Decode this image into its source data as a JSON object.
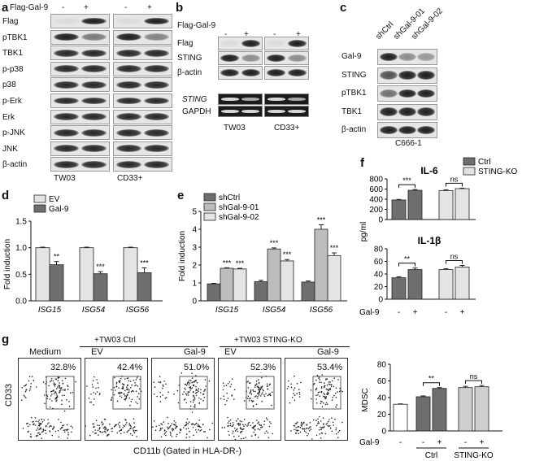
{
  "panel_a": {
    "letter": "a",
    "treatment_label": "Flag-Gal-9",
    "signs": [
      "-",
      "+",
      "-",
      "+"
    ],
    "rows": [
      "Flag",
      "pTBK1",
      "TBK1",
      "p-p38",
      "p38",
      "p-Erk",
      "Erk",
      "p-JNK",
      "JNK",
      "β-actin"
    ],
    "cell_lines": [
      "TW03",
      "CD33+"
    ]
  },
  "panel_b": {
    "letter": "b",
    "treatment_label": "Flag-Gal-9",
    "signs": [
      "-",
      "+",
      "-",
      "+"
    ],
    "rows": [
      "Flag",
      "STING",
      "β-actin"
    ],
    "pcr_rows": [
      "STING",
      "GAPDH"
    ],
    "cell_lines": [
      "TW03",
      "CD33+"
    ]
  },
  "panel_c": {
    "letter": "c",
    "lanes": [
      "shCtrl",
      "shGal-9-01",
      "shGal-9-02"
    ],
    "rows": [
      "Gal-9",
      "STING",
      "pTBK1",
      "TBK1",
      "β-actin"
    ],
    "cell_line": "C666-1"
  },
  "panel_d": {
    "letter": "d",
    "ylabel": "Fold induction",
    "legend": [
      "EV",
      "Gal-9"
    ],
    "yticks": [
      "0.0",
      "0.5",
      "1.0",
      "1.5"
    ],
    "categories": [
      "ISG15",
      "ISG54",
      "ISG56"
    ],
    "stars": [
      "**",
      "***",
      "***"
    ]
  },
  "panel_e": {
    "letter": "e",
    "ylabel": "Fold induction",
    "legend": [
      "shCtrl",
      "shGal-9-01",
      "shGal-9-02"
    ],
    "yticks": [
      "0",
      "1",
      "2",
      "3",
      "4",
      "5"
    ],
    "categories": [
      "ISG15",
      "ISG54",
      "ISG56"
    ],
    "stars": [
      "***",
      "***",
      "***",
      "***",
      "***",
      "***"
    ]
  },
  "panel_f": {
    "letter": "f",
    "ylabel": "pg/ml",
    "legend": [
      "Ctrl",
      "STING-KO"
    ],
    "top_title": "IL-6",
    "top_yticks": [
      "0",
      "200",
      "400",
      "600",
      "800"
    ],
    "bottom_title": "IL-1β",
    "bottom_yticks": [
      "0",
      "20",
      "40",
      "60",
      "80"
    ],
    "top_sig": [
      "***",
      "ns"
    ],
    "bottom_sig": [
      "**",
      "ns"
    ],
    "row_label": "Gal-9",
    "signs": [
      "-",
      "+",
      "-",
      "+"
    ]
  },
  "panel_g": {
    "letter": "g",
    "ylabel": "CD33",
    "xlabel": "CD11b (Gated in HLA-DR-)",
    "group1": "+TW03 Ctrl",
    "group2": "+TW03 STING-KO",
    "plots": [
      {
        "title": "Medium",
        "pct": "32.8%"
      },
      {
        "title": "EV",
        "pct": "42.4%"
      },
      {
        "title": "Gal-9",
        "pct": "51.0%"
      },
      {
        "title": "EV",
        "pct": "52.3%"
      },
      {
        "title": "Gal-9",
        "pct": "53.4%"
      }
    ],
    "bar_ylabel": "MDSC",
    "bar_yticks": [
      "0",
      "20",
      "40",
      "60",
      "80"
    ],
    "bar_sig": [
      "**",
      "ns"
    ],
    "row_label": "Gal-9",
    "signs": [
      "-",
      "-",
      "+",
      "-",
      "+"
    ],
    "group_labels": [
      "Ctrl",
      "STING-KO"
    ]
  },
  "chart_data": [
    {
      "type": "bar",
      "panel": "d",
      "categories": [
        "ISG15",
        "ISG54",
        "ISG56"
      ],
      "ylabel": "Fold induction",
      "ylim": [
        0,
        1.5
      ],
      "series": [
        {
          "name": "EV",
          "values": [
            1.0,
            1.0,
            1.0
          ],
          "errors": [
            0.01,
            0.01,
            0.01
          ],
          "color": "#e4e4e4"
        },
        {
          "name": "Gal-9",
          "values": [
            0.68,
            0.51,
            0.53
          ],
          "errors": [
            0.06,
            0.04,
            0.09
          ],
          "color": "#6e6e6e"
        }
      ]
    },
    {
      "type": "bar",
      "panel": "e",
      "categories": [
        "ISG15",
        "ISG54",
        "ISG56"
      ],
      "ylabel": "Fold induction",
      "ylim": [
        0,
        5
      ],
      "series": [
        {
          "name": "shCtrl",
          "values": [
            0.95,
            1.07,
            1.05
          ],
          "errors": [
            0.03,
            0.08,
            0.06
          ],
          "color": "#6e6e6e"
        },
        {
          "name": "shGal-9-01",
          "values": [
            1.82,
            2.9,
            4.0
          ],
          "errors": [
            0.03,
            0.06,
            0.25
          ],
          "color": "#bdbdbd"
        },
        {
          "name": "shGal-9-02",
          "values": [
            1.78,
            2.23,
            2.53
          ],
          "errors": [
            0.04,
            0.08,
            0.15
          ],
          "color": "#e4e4e4"
        }
      ]
    },
    {
      "type": "bar",
      "panel": "f-top",
      "title": "IL-6",
      "ylabel": "pg/ml",
      "ylim": [
        0,
        800
      ],
      "categories": [
        "-",
        "+",
        "-",
        "+"
      ],
      "values": [
        385,
        575,
        570,
        608
      ],
      "errors": [
        10,
        15,
        15,
        10
      ],
      "colors": [
        "#6e6e6e",
        "#6e6e6e",
        "#e4e4e4",
        "#e4e4e4"
      ]
    },
    {
      "type": "bar",
      "panel": "f-bottom",
      "title": "IL-1β",
      "ylabel": "pg/ml",
      "ylim": [
        0,
        80
      ],
      "categories": [
        "-",
        "+",
        "-",
        "+"
      ],
      "values": [
        34,
        47,
        47,
        51
      ],
      "errors": [
        1.5,
        2.5,
        1.5,
        2.5
      ],
      "colors": [
        "#6e6e6e",
        "#6e6e6e",
        "#e4e4e4",
        "#e4e4e4"
      ]
    },
    {
      "type": "bar",
      "panel": "g",
      "ylabel": "MDSC",
      "ylim": [
        0,
        80
      ],
      "categories": [
        "Medium",
        "Ctrl -",
        "Ctrl +",
        "STING-KO -",
        "STING-KO +"
      ],
      "values": [
        32,
        41,
        51,
        52,
        53
      ],
      "errors": [
        0.5,
        1,
        1,
        1.5,
        1.5
      ],
      "colors": [
        "#ffffff",
        "#6e6e6e",
        "#6e6e6e",
        "#cfcfcf",
        "#cfcfcf"
      ]
    }
  ]
}
